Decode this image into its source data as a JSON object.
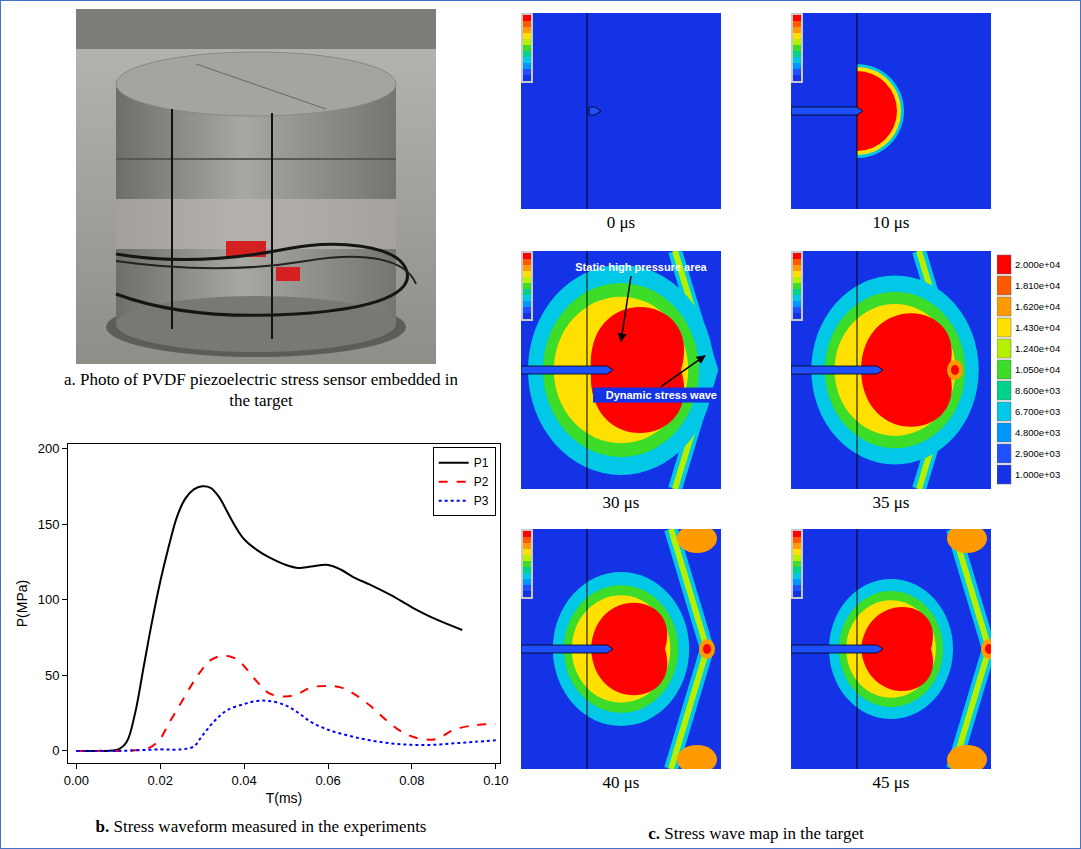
{
  "photo_panel": {
    "label": "a.",
    "caption": "Photo of PVDF piezoelectric stress sensor embedded in the target"
  },
  "chart_data": {
    "type": "line",
    "label": "b.",
    "caption": "Stress waveform measured in the experiments",
    "x_label": "T(ms)",
    "y_label": "P(MPa)",
    "xlim": [
      -0.002,
      0.101
    ],
    "ylim": [
      -8,
      203
    ],
    "xticks": [
      {
        "value": 0,
        "label": "0.00"
      },
      {
        "value": 0.02,
        "label": "0.02"
      },
      {
        "value": 0.04,
        "label": "0.04"
      },
      {
        "value": 0.06,
        "label": "0.06"
      },
      {
        "value": 0.08,
        "label": "0.08"
      },
      {
        "value": 0.1,
        "label": "0.10"
      }
    ],
    "yticks": [
      0,
      50,
      100,
      150,
      200
    ],
    "grid": false,
    "legend": "top-right",
    "series": [
      {
        "name": "P1",
        "color": "#000000",
        "line_style": "solid",
        "x": [
          0,
          0.005,
          0.01,
          0.012,
          0.014,
          0.016,
          0.018,
          0.02,
          0.022,
          0.024,
          0.026,
          0.028,
          0.03,
          0.032,
          0.034,
          0.036,
          0.038,
          0.04,
          0.043,
          0.046,
          0.05,
          0.053,
          0.056,
          0.06,
          0.063,
          0.066,
          0.07,
          0.075,
          0.08,
          0.085,
          0.092
        ],
        "values": [
          0,
          0,
          1,
          6,
          25,
          55,
          85,
          112,
          135,
          155,
          167,
          173,
          175,
          174,
          168,
          158,
          148,
          140,
          133,
          128,
          123,
          121,
          122,
          123,
          120,
          115,
          110,
          103,
          95,
          88,
          80
        ]
      },
      {
        "name": "P2",
        "color": "#ff0000",
        "line_style": "dash",
        "x": [
          0,
          0.01,
          0.016,
          0.018,
          0.02,
          0.022,
          0.025,
          0.028,
          0.03,
          0.032,
          0.035,
          0.038,
          0.04,
          0.043,
          0.046,
          0.05,
          0.053,
          0.056,
          0.06,
          0.063,
          0.066,
          0.07,
          0.074,
          0.078,
          0.082,
          0.086,
          0.09,
          0.095,
          0.1
        ],
        "values": [
          0,
          0,
          1,
          3,
          8,
          18,
          32,
          46,
          54,
          60,
          63,
          61,
          56,
          46,
          38,
          36,
          38,
          42,
          43,
          42,
          38,
          30,
          20,
          12,
          8,
          8,
          14,
          17,
          18
        ]
      },
      {
        "name": "P3",
        "color": "#0000ff",
        "line_style": "dot",
        "x": [
          0,
          0.01,
          0.02,
          0.025,
          0.028,
          0.03,
          0.033,
          0.036,
          0.04,
          0.043,
          0.046,
          0.05,
          0.053,
          0.056,
          0.06,
          0.065,
          0.07,
          0.075,
          0.08,
          0.085,
          0.09,
          0.095,
          0.1
        ],
        "values": [
          0,
          0,
          1,
          1,
          3,
          10,
          20,
          27,
          31,
          33,
          33,
          30,
          25,
          19,
          14,
          10,
          7,
          5,
          4,
          4,
          5,
          6,
          7
        ]
      }
    ]
  },
  "map_panel": {
    "label": "c.",
    "caption": "Stress wave map in the target",
    "colorbar": {
      "ticks": [
        {
          "value": 20000,
          "label": "2.000e+04"
        },
        {
          "value": 18100,
          "label": "1.810e+04"
        },
        {
          "value": 16200,
          "label": "1.620e+04"
        },
        {
          "value": 14300,
          "label": "1.430e+04"
        },
        {
          "value": 12400,
          "label": "1.240e+04"
        },
        {
          "value": 10500,
          "label": "1.050e+04"
        },
        {
          "value": 8600,
          "label": "8.600e+03"
        },
        {
          "value": 6700,
          "label": "6.700e+03"
        },
        {
          "value": 4800,
          "label": "4.800e+03"
        },
        {
          "value": 2900,
          "label": "2.900e+03"
        },
        {
          "value": 1000,
          "label": "1.000e+03"
        }
      ],
      "colors": [
        "#ff0000",
        "#ff5a00",
        "#ff9a00",
        "#ffe000",
        "#b4f000",
        "#3cdc28",
        "#00d28c",
        "#00c8e6",
        "#0096ff",
        "#1e50ff",
        "#1432e6"
      ]
    },
    "frames": [
      {
        "time": "0 μs"
      },
      {
        "time": "10 μs"
      },
      {
        "time": "30 μs",
        "annotations": [
          "Static high pressure area",
          "Dynamic stress wave"
        ]
      },
      {
        "time": "35 μs"
      },
      {
        "time": "40 μs"
      },
      {
        "time": "45 μs"
      }
    ]
  }
}
